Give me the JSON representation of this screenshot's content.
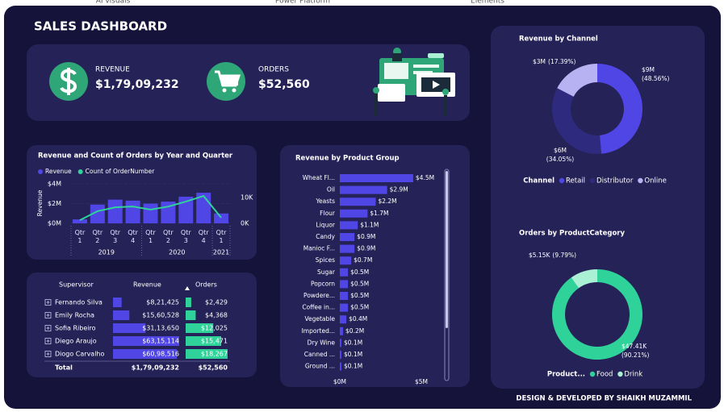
{
  "tabs": [
    "AI visuals",
    "Power Platform",
    "Elements"
  ],
  "header": {
    "title": "SALES DASHBOARD"
  },
  "kpis": [
    {
      "label": "REVENUE",
      "value": "$1,79,09,232"
    },
    {
      "label": "ORDERS",
      "value": "$52,560"
    }
  ],
  "chart_data": [
    {
      "type": "combo",
      "title": "Revenue and Count of Orders by Year and Quarter",
      "categories": [
        "Qtr 1",
        "Qtr 2",
        "Qtr 3",
        "Qtr 4",
        "Qtr 1",
        "Qtr 2",
        "Qtr 3",
        "Qtr 4",
        "Qtr 1"
      ],
      "years": [
        "2019",
        "2020",
        "2021"
      ],
      "y_label": "Revenue",
      "series": [
        {
          "name": "Revenue",
          "color": "#5046e5",
          "values": [
            0.4,
            1.9,
            2.4,
            2.3,
            2.0,
            2.2,
            2.7,
            3.1,
            1.0
          ]
        },
        {
          "name": "Count of OrderNumber",
          "color": "#2fd39a",
          "axis": "y2",
          "values": [
            1200,
            4700,
            6200,
            6500,
            5300,
            6500,
            8400,
            10600,
            2200
          ]
        }
      ],
      "ylim": [
        0,
        4
      ],
      "yticks": [
        {
          "value": 0,
          "label": "$0M"
        },
        {
          "value": 2,
          "label": "$2M"
        },
        {
          "value": 4,
          "label": "$4M"
        }
      ],
      "y2lim": [
        0,
        15300
      ],
      "y2ticks": [
        {
          "value": 0,
          "label": "0K"
        },
        {
          "value": 10000,
          "label": "10K"
        }
      ]
    },
    {
      "type": "hbar",
      "title": "Revenue by Product Group",
      "color": "#5046e5",
      "categories": [
        "Wheat Fl...",
        "Oil",
        "Yeasts",
        "Flour",
        "Liquor",
        "Candy",
        "Manioc F...",
        "Spices",
        "Sugar",
        "Popcorn",
        "Powdere...",
        "Coffee in...",
        "Vegetable",
        "Imported...",
        "Dry Wine",
        "Canned ...",
        "Ground ..."
      ],
      "values": [
        4.5,
        2.9,
        2.2,
        1.7,
        1.1,
        0.9,
        0.9,
        0.7,
        0.5,
        0.5,
        0.5,
        0.5,
        0.4,
        0.2,
        0.1,
        0.1,
        0.1
      ],
      "value_labels": [
        "$4.5M",
        "$2.9M",
        "$2.2M",
        "$1.7M",
        "$1.1M",
        "$0.9M",
        "$0.9M",
        "$0.7M",
        "$0.5M",
        "$0.5M",
        "$0.5M",
        "$0.5M",
        "$0.4M",
        "$0.2M",
        "$0.1M",
        "$0.1M",
        "$0.1M"
      ],
      "xlim": [
        0,
        5
      ],
      "xticks": [
        {
          "value": 0,
          "label": "$0M"
        },
        {
          "value": 5,
          "label": "$5M"
        }
      ]
    },
    {
      "type": "donut",
      "title": "Revenue by Channel",
      "legend_title": "Channel",
      "categories": [
        "Retail",
        "Distributor",
        "Online"
      ],
      "colors": [
        "#5046e5",
        "#2e2a7e",
        "#b7b2f2"
      ],
      "values": [
        48.56,
        34.05,
        17.39
      ],
      "value_labels": [
        "(48.56%)",
        "(34.05%)",
        "(17.39%)"
      ],
      "amounts": [
        "$9M",
        "$6M",
        "$3M"
      ]
    },
    {
      "type": "donut",
      "title": "Orders by ProductCategory",
      "legend_title": "Product...",
      "categories": [
        "Food",
        "Drink"
      ],
      "colors": [
        "#2fd39a",
        "#a9f0d5"
      ],
      "values": [
        90.21,
        9.79
      ],
      "value_labels": [
        "(90.21%)",
        "(9.79%)"
      ],
      "amounts": [
        "$47.41K",
        "$5.15K"
      ]
    }
  ],
  "table": {
    "columns": [
      "Supervisor",
      "Revenue",
      "Orders"
    ],
    "rows": [
      {
        "name": "Fernando Silva",
        "revenue": {
          "value": 821425,
          "label": "$8,21,425"
        },
        "orders": {
          "value": 2429,
          "label": "$2,429"
        }
      },
      {
        "name": "Emily Rocha",
        "revenue": {
          "value": 1560528,
          "label": "$15,60,528"
        },
        "orders": {
          "value": 4368,
          "label": "$4,368"
        }
      },
      {
        "name": "Sofia Ribeiro",
        "revenue": {
          "value": 3113650,
          "label": "$31,13,650"
        },
        "orders": {
          "value": 12025,
          "label": "$12,025"
        }
      },
      {
        "name": "Diego Araujo",
        "revenue": {
          "value": 6315114,
          "label": "$63,15,114"
        },
        "orders": {
          "value": 15471,
          "label": "$15,471"
        }
      },
      {
        "name": "Diogo Carvalho",
        "revenue": {
          "value": 6098516,
          "label": "$60,98,516"
        },
        "orders": {
          "value": 18267,
          "label": "$18,267"
        }
      }
    ],
    "total": {
      "name": "Total",
      "revenue": "$1,79,09,232",
      "orders": "$52,560"
    }
  },
  "footer": "DESIGN & DEVELOPED BY SHAIKH MUZAMMIL"
}
